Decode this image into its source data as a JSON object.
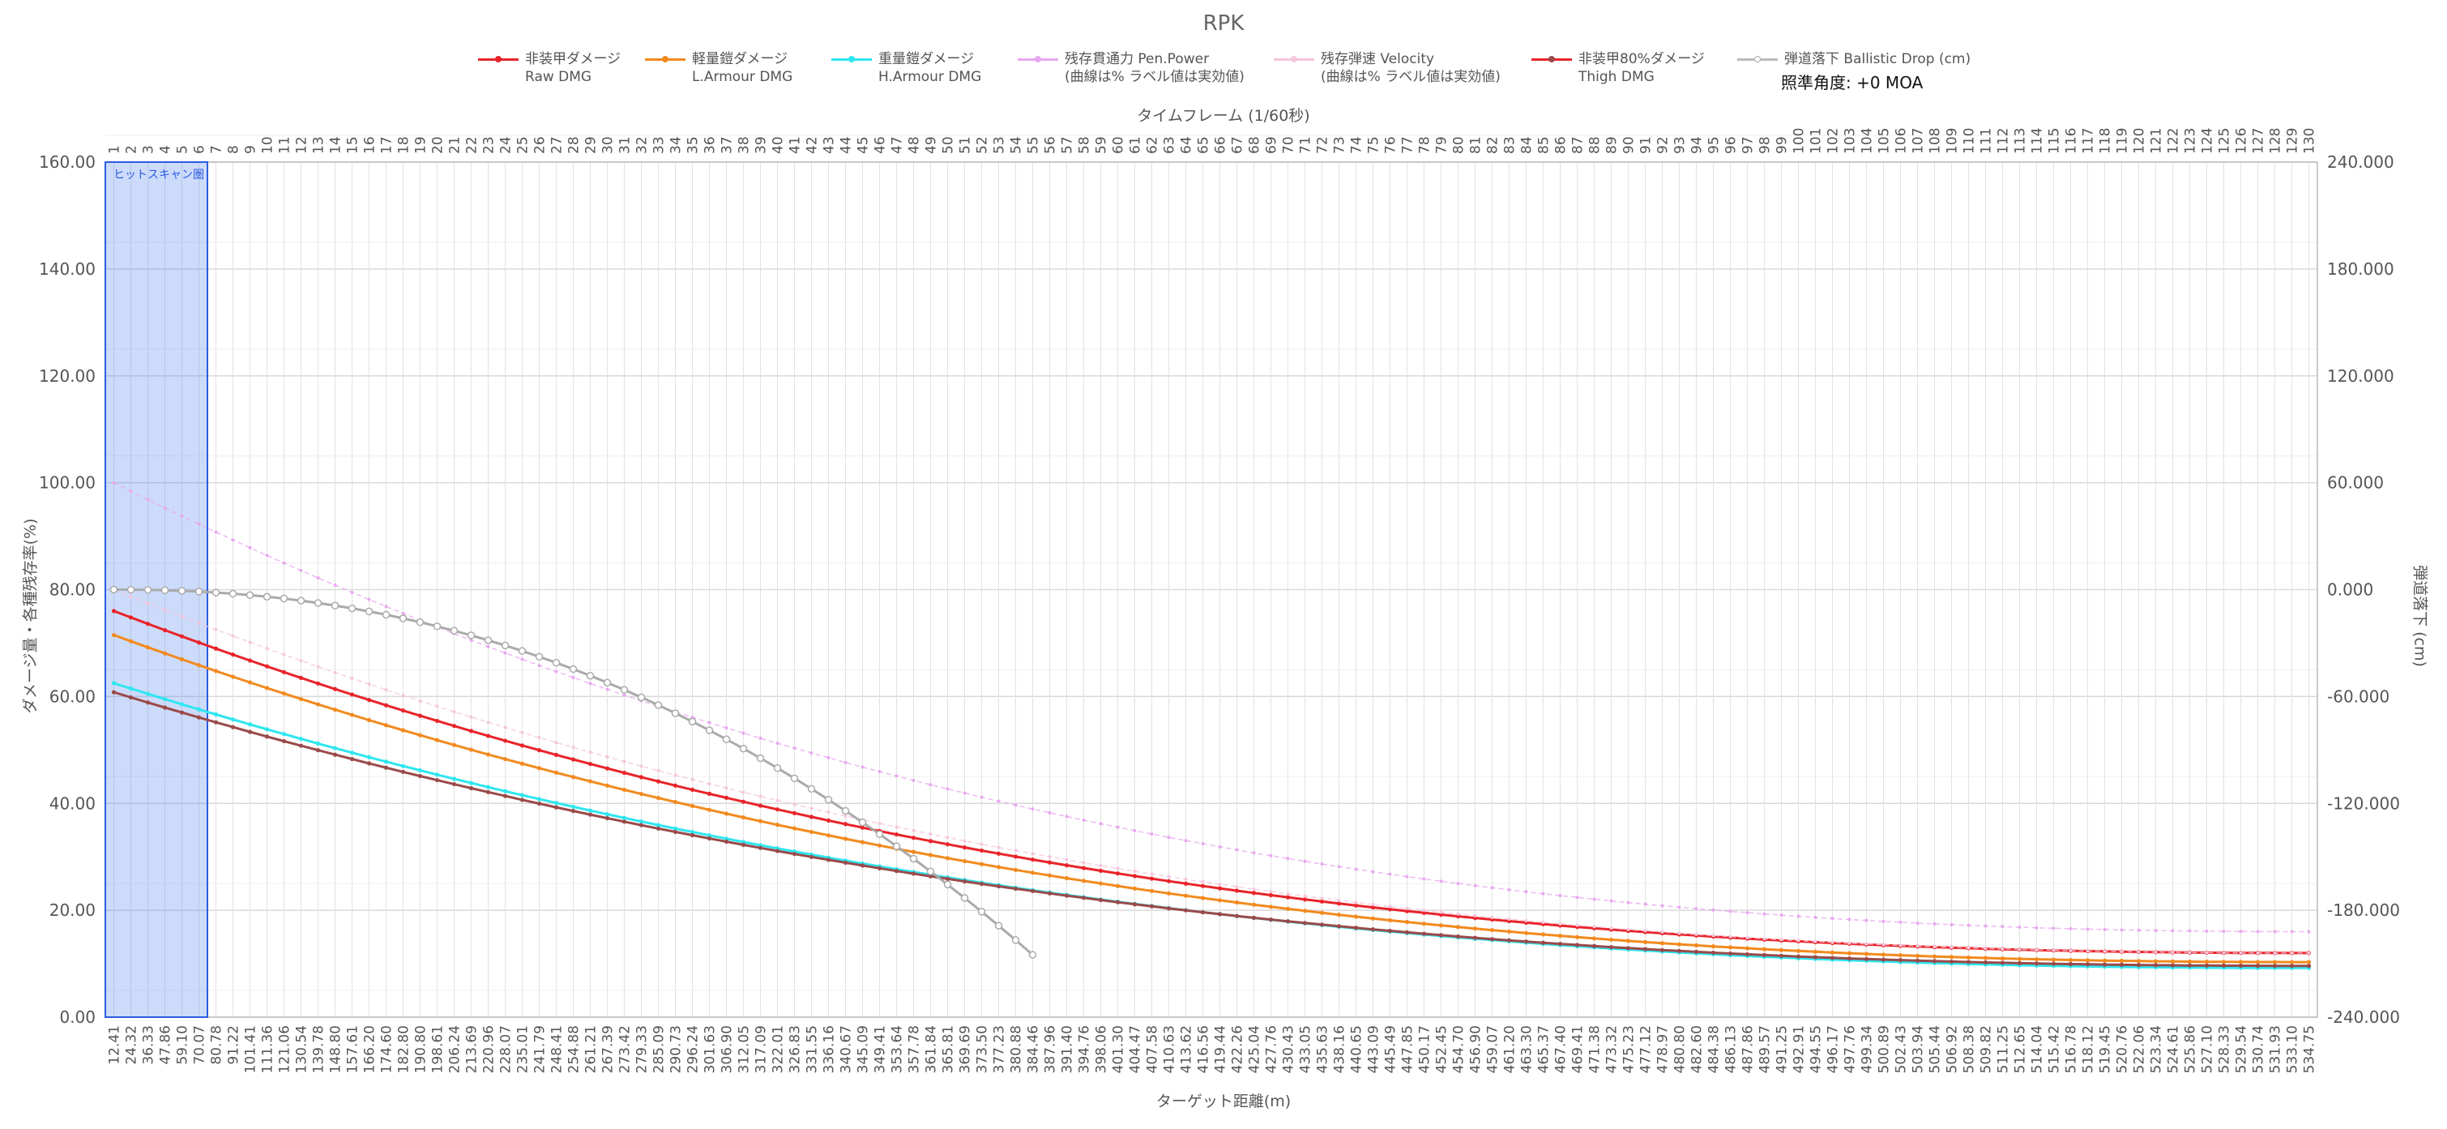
{
  "chart_data": {
    "type": "line",
    "title": "RPK",
    "aim_angle_label": "照準角度: +0 MOA",
    "x_top_title": "タイムフレーム (1/60秒)",
    "x_bottom_title": "ターゲット距離(m)",
    "y_left_title": "ダメージ量・各種残存率(%)",
    "y_right_title": "弾道落下 (cm)",
    "y_left_ticks": [
      "0.00",
      "20.00",
      "40.00",
      "60.00",
      "80.00",
      "100.00",
      "120.00",
      "140.00",
      "160.00"
    ],
    "y_right_ticks": [
      "-240.000",
      "-180.000",
      "-120.000",
      "-60.000",
      "0.000",
      "60.000",
      "120.000",
      "180.000",
      "240.000"
    ],
    "ylim_left": [
      0,
      160
    ],
    "ylim_right": [
      -240,
      240
    ],
    "frames_range": [
      1,
      130
    ],
    "distance_labels": [
      "12.41",
      "24.32",
      "36.33",
      "47.86",
      "59.10",
      "70.07",
      "80.78",
      "91.22",
      "101.41",
      "111.36",
      "121.06",
      "130.54",
      "139.78",
      "148.80",
      "157.61",
      "166.20",
      "174.60",
      "182.80",
      "190.80",
      "198.61",
      "206.24",
      "213.69",
      "220.96",
      "228.07",
      "235.01",
      "241.79",
      "248.41",
      "254.88",
      "261.21",
      "267.39",
      "273.42",
      "279.33",
      "285.09",
      "290.73",
      "296.24",
      "301.63",
      "306.90",
      "312.05",
      "317.09",
      "322.01",
      "326.83",
      "331.55",
      "336.16",
      "340.67",
      "345.09",
      "349.41",
      "353.64",
      "357.78",
      "361.84",
      "365.81",
      "369.69",
      "373.50",
      "377.23",
      "380.88",
      "384.46",
      "387.96",
      "391.40",
      "394.76",
      "398.06",
      "401.30",
      "404.47",
      "407.58",
      "410.63",
      "413.62",
      "416.56",
      "419.44",
      "422.26",
      "425.04",
      "427.76",
      "430.43",
      "433.05",
      "435.63",
      "438.16",
      "440.65",
      "443.09",
      "445.49",
      "447.85",
      "450.17",
      "452.45",
      "454.70",
      "456.90",
      "459.07",
      "461.20",
      "463.30",
      "465.37",
      "467.40",
      "469.41",
      "471.38",
      "473.32",
      "475.23",
      "477.12",
      "478.97",
      "480.80",
      "482.60",
      "484.38",
      "486.13",
      "487.86",
      "489.57",
      "491.25",
      "492.91",
      "494.55",
      "496.17",
      "497.76",
      "499.34",
      "500.89",
      "502.43",
      "503.94",
      "505.44",
      "506.92",
      "508.38",
      "509.82",
      "511.25",
      "512.65",
      "514.04",
      "515.42",
      "516.78",
      "518.12",
      "519.45",
      "520.76",
      "522.06",
      "523.34",
      "524.61",
      "525.86",
      "527.10",
      "528.33",
      "529.54",
      "530.74",
      "531.93",
      "533.10",
      "534.75"
    ],
    "hitscan_zone": {
      "label": "ヒットスキャン圏",
      "frames": [
        1,
        6
      ]
    },
    "series": [
      {
        "key": "raw",
        "name": "非装甲ダメージ\nRaw DMG",
        "color": "#e8242a",
        "start": 76,
        "end": 12,
        "axis": "left"
      },
      {
        "key": "light",
        "name": "軽量鎧ダメージ\nL.Armour DMG",
        "color": "#f28a1f",
        "start": 71.5,
        "end": 10.3,
        "axis": "left"
      },
      {
        "key": "heavy",
        "name": "重量鎧ダメージ\nH.Armour DMG",
        "color": "#2ee6f0",
        "start": 62.5,
        "end": 9.2,
        "axis": "left"
      },
      {
        "key": "pen",
        "name": "残存貫通力 Pen.Power\n(曲線は% ラベル値は実効値)",
        "color": "#e8a8f0",
        "start": 100,
        "end": 16,
        "axis": "left"
      },
      {
        "key": "vel",
        "name": "残存弾速 Velocity\n(曲線は% ラベル値は実効値)",
        "color": "#f4c6dc",
        "start": 80,
        "end": 12,
        "axis": "left"
      },
      {
        "key": "thigh",
        "name": "非装甲80%ダメージ\nThigh DMG",
        "color": "#9a4a4a",
        "start": 60.8,
        "end": 9.6,
        "axis": "left"
      },
      {
        "key": "drop",
        "name": "弾道落下 Ballistic Drop (cm)",
        "color": "#aaaaaa",
        "axis": "right",
        "end_frame": 55,
        "end_value": -205
      }
    ]
  }
}
